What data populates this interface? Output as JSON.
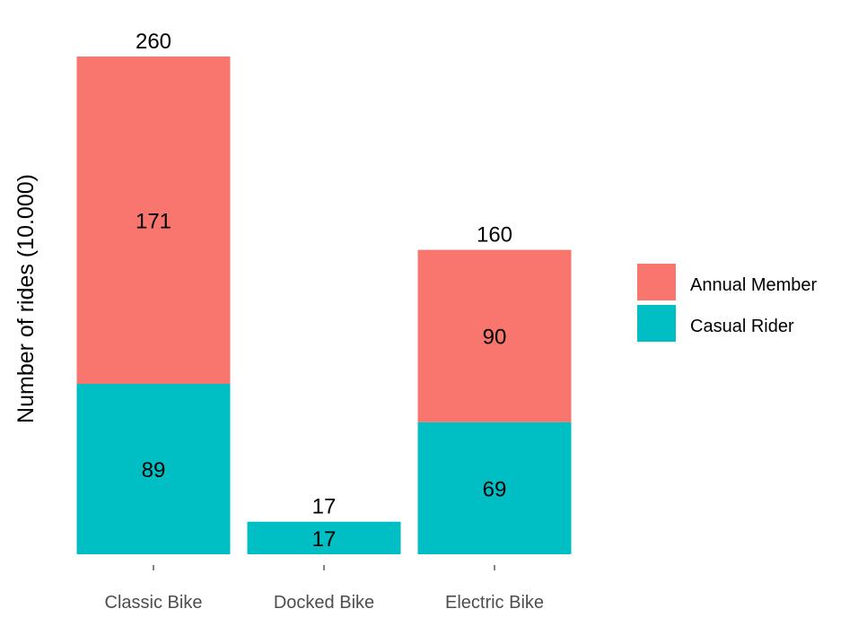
{
  "chart_data": {
    "type": "bar",
    "stacked": true,
    "title": "",
    "xlabel": "",
    "ylabel": "Number of rides (10.000)",
    "ylim": [
      0,
      260
    ],
    "grid": false,
    "legend_position": "right",
    "categories": [
      "Classic Bike",
      "Docked Bike",
      "Electric Bike"
    ],
    "series": [
      {
        "name": "Casual Rider",
        "color": "#00BFC4",
        "values": [
          89,
          17,
          69
        ],
        "labels": [
          "89",
          "17",
          "69"
        ]
      },
      {
        "name": "Annual Member",
        "color": "#F8766D",
        "values": [
          171,
          0,
          90
        ],
        "labels": [
          "171",
          "",
          "90"
        ]
      }
    ],
    "totals": [
      "260",
      "17",
      "160"
    ],
    "legend": [
      "Annual Member",
      "Casual Rider"
    ]
  }
}
